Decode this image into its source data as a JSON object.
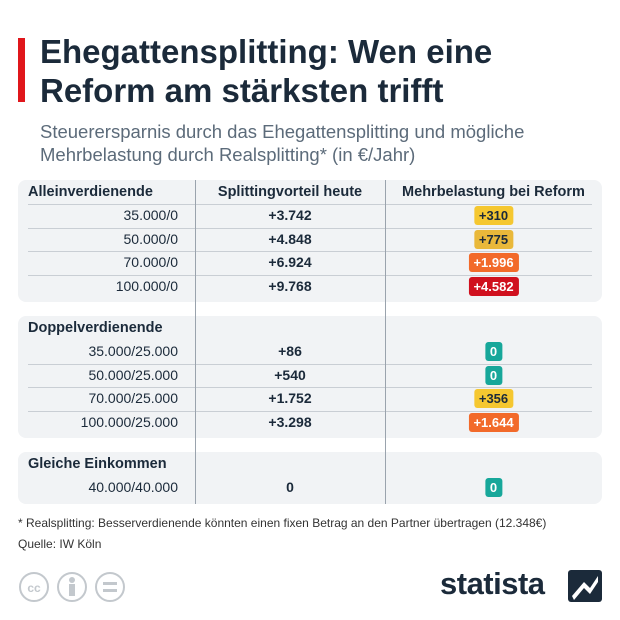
{
  "header": {
    "title": "Ehegattensplitting: Wen eine Reform am stärksten trifft",
    "subtitle": "Steuerersparnis durch das Ehegattensplitting und mögliche Mehrbelastung durch Realsplitting* (in €/Jahr)"
  },
  "table": {
    "columns": [
      "Splittingvorteil heute",
      "Mehrbelastung bei Reform"
    ],
    "groups": [
      {
        "label": "Alleinverdienende",
        "rows": [
          {
            "income": "35.000/0",
            "advantage": "+3.742",
            "burden": "+310",
            "color": "#f5c730"
          },
          {
            "income": "50.000/0",
            "advantage": "+4.848",
            "burden": "+775",
            "color": "#e9b83a"
          },
          {
            "income": "70.000/0",
            "advantage": "+6.924",
            "burden": "+1.996",
            "color": "#f26a2a"
          },
          {
            "income": "100.000/0",
            "advantage": "+9.768",
            "burden": "+4.582",
            "color": "#d0101e"
          }
        ]
      },
      {
        "label": "Doppelverdienende",
        "rows": [
          {
            "income": "35.000/25.000",
            "advantage": "+86",
            "burden": "0",
            "color": "#17a79a"
          },
          {
            "income": "50.000/25.000",
            "advantage": "+540",
            "burden": "0",
            "color": "#17a79a"
          },
          {
            "income": "70.000/25.000",
            "advantage": "+1.752",
            "burden": "+356",
            "color": "#f5c730"
          },
          {
            "income": "100.000/25.000",
            "advantage": "+3.298",
            "burden": "+1.644",
            "color": "#f26a2a"
          }
        ]
      },
      {
        "label": "Gleiche Einkommen",
        "rows": [
          {
            "income": "40.000/40.000",
            "advantage": "0",
            "burden": "0",
            "color": "#17a79a"
          }
        ]
      }
    ]
  },
  "footer": {
    "note": "* Realsplitting: Besserverdienende könnten einen fixen Betrag an den Partner übertragen (12.348€)",
    "source": "Quelle: IW Köln",
    "logo": "statista"
  }
}
